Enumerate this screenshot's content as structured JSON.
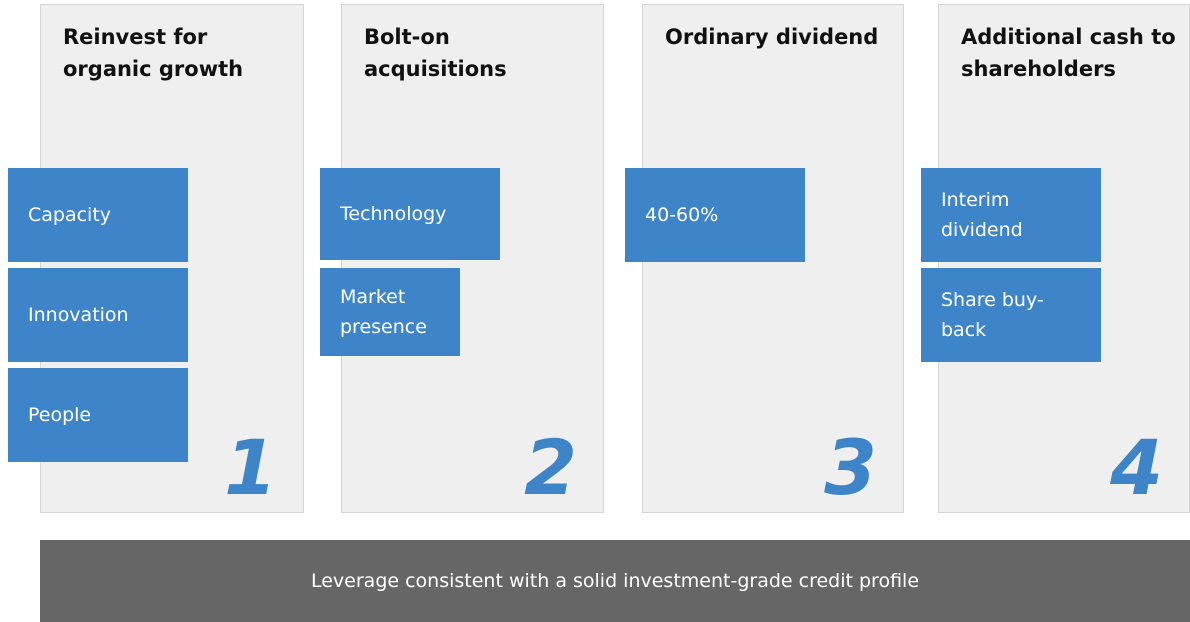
{
  "columns": [
    {
      "title": "Reinvest for organic growth",
      "number": "1",
      "items": [
        "Capacity",
        "Innovation",
        "People"
      ]
    },
    {
      "title": "Bolt-on acquisitions",
      "number": "2",
      "items": [
        "Technology",
        "Market presence"
      ]
    },
    {
      "title": "Ordinary dividend",
      "number": "3",
      "items": [
        "40-60%"
      ]
    },
    {
      "title": "Additional cash to shareholders",
      "number": "4",
      "items": [
        "Interim dividend",
        "Share buy-back"
      ]
    }
  ],
  "footer": "Leverage consistent with a solid investment-grade credit profile"
}
